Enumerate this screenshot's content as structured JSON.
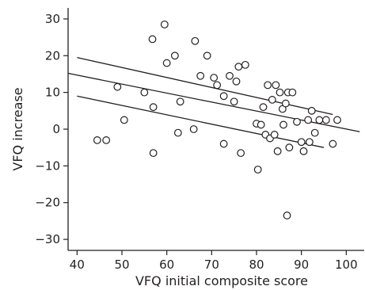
{
  "chart_data": {
    "type": "scatter",
    "title": "",
    "xlabel": "VFQ initial composite score",
    "ylabel": "VFQ increase",
    "xlim": [
      38,
      104
    ],
    "ylim": [
      -33,
      33
    ],
    "xticks": [
      40,
      50,
      60,
      70,
      80,
      90,
      100
    ],
    "yticks": [
      30,
      20,
      10,
      0,
      -10,
      -20,
      -30
    ],
    "xtick_labels": [
      "40",
      "50",
      "60",
      "70",
      "80",
      "90",
      "100"
    ],
    "ytick_labels": [
      "30",
      "20",
      "10",
      "0",
      "−10",
      "−20",
      "−30"
    ],
    "grid": false,
    "legend": "none",
    "points": [
      [
        44.5,
        -3
      ],
      [
        46.5,
        -3
      ],
      [
        49,
        11.5
      ],
      [
        50.5,
        2.5
      ],
      [
        55,
        10
      ],
      [
        56.8,
        24.5
      ],
      [
        57,
        6
      ],
      [
        57,
        -6.5
      ],
      [
        59.5,
        28.5
      ],
      [
        60,
        18
      ],
      [
        61.8,
        20
      ],
      [
        62.5,
        -1
      ],
      [
        63,
        7.5
      ],
      [
        66,
        0
      ],
      [
        66.3,
        24
      ],
      [
        67.5,
        14.5
      ],
      [
        69,
        20
      ],
      [
        70.5,
        14
      ],
      [
        71.2,
        12
      ],
      [
        72.7,
        9
      ],
      [
        72.7,
        -4
      ],
      [
        74,
        14.5
      ],
      [
        75,
        7.5
      ],
      [
        75.5,
        13
      ],
      [
        76,
        17
      ],
      [
        76.5,
        -6.5
      ],
      [
        77.5,
        17.5
      ],
      [
        80,
        1.5
      ],
      [
        80.3,
        -11
      ],
      [
        81,
        1.2
      ],
      [
        81.5,
        6
      ],
      [
        82,
        -1.5
      ],
      [
        82.5,
        12
      ],
      [
        83,
        -2.5
      ],
      [
        83.5,
        8
      ],
      [
        84,
        -1.5
      ],
      [
        84.3,
        12
      ],
      [
        84.7,
        -6
      ],
      [
        85.2,
        10
      ],
      [
        85.8,
        5.5
      ],
      [
        86,
        1.2
      ],
      [
        86.5,
        7
      ],
      [
        87,
        10
      ],
      [
        87.3,
        -5
      ],
      [
        88,
        10
      ],
      [
        86.8,
        -23.5
      ],
      [
        89,
        2
      ],
      [
        90,
        -3.5
      ],
      [
        90.5,
        -6
      ],
      [
        91.5,
        2.5
      ],
      [
        91.8,
        -3.5
      ],
      [
        92.3,
        5
      ],
      [
        93,
        -1
      ],
      [
        94,
        2.5
      ],
      [
        95.5,
        2.5
      ],
      [
        97,
        -4
      ],
      [
        98,
        2.5
      ]
    ],
    "lines": [
      {
        "role": "regression",
        "x": [
          38,
          103
        ],
        "y": [
          15.2,
          -0.7
        ]
      },
      {
        "role": "upper-confidence-band",
        "x": [
          40,
          97
        ],
        "y": [
          19.5,
          4
        ]
      },
      {
        "role": "lower-confidence-band",
        "x": [
          40,
          95
        ],
        "y": [
          9,
          -5
        ]
      }
    ],
    "style": {
      "ink_color": "#231f20",
      "background": "#ffffff"
    }
  }
}
